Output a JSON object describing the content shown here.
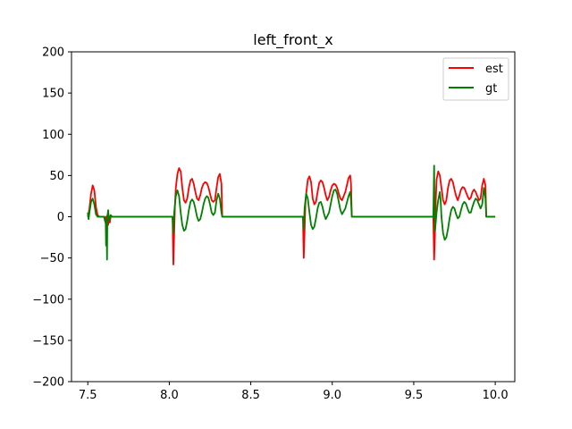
{
  "chart_data": {
    "type": "line",
    "title": "left_front_x",
    "xlabel": "",
    "ylabel": "",
    "xlim": [
      7.4,
      10.12
    ],
    "ylim": [
      -200,
      200
    ],
    "x_ticks": [
      7.5,
      8.0,
      8.5,
      9.0,
      9.5,
      10.0
    ],
    "x_tick_labels": [
      "7.5",
      "8.0",
      "8.5",
      "9.0",
      "9.5",
      "10.0"
    ],
    "y_ticks": [
      -200,
      -150,
      -100,
      -50,
      0,
      50,
      100,
      150,
      200
    ],
    "y_tick_labels": [
      "−200",
      "−150",
      "−100",
      "−50",
      "0",
      "50",
      "100",
      "150",
      "200"
    ],
    "grid": false,
    "legend_position": "top-right",
    "series": [
      {
        "name": "est",
        "color": "#ff0000",
        "points": [
          [
            7.5,
            0
          ],
          [
            7.51,
            10
          ],
          [
            7.52,
            28
          ],
          [
            7.53,
            38
          ],
          [
            7.54,
            32
          ],
          [
            7.55,
            12
          ],
          [
            7.56,
            2
          ],
          [
            7.57,
            0
          ],
          [
            7.6,
            0
          ],
          [
            7.605,
            -5
          ],
          [
            7.61,
            0
          ],
          [
            7.615,
            -8
          ],
          [
            7.62,
            2
          ],
          [
            7.625,
            -10
          ],
          [
            7.63,
            0
          ],
          [
            7.635,
            -7
          ],
          [
            7.64,
            0
          ],
          [
            7.65,
            0
          ],
          [
            8.0,
            0
          ],
          [
            8.02,
            0
          ],
          [
            8.025,
            -58
          ],
          [
            8.03,
            -20
          ],
          [
            8.035,
            15
          ],
          [
            8.04,
            35
          ],
          [
            8.05,
            52
          ],
          [
            8.06,
            59
          ],
          [
            8.07,
            55
          ],
          [
            8.08,
            35
          ],
          [
            8.09,
            20
          ],
          [
            8.1,
            17
          ],
          [
            8.11,
            22
          ],
          [
            8.12,
            35
          ],
          [
            8.13,
            44
          ],
          [
            8.14,
            46
          ],
          [
            8.15,
            40
          ],
          [
            8.16,
            30
          ],
          [
            8.17,
            22
          ],
          [
            8.18,
            20
          ],
          [
            8.19,
            26
          ],
          [
            8.2,
            35
          ],
          [
            8.21,
            40
          ],
          [
            8.22,
            42
          ],
          [
            8.23,
            41
          ],
          [
            8.24,
            36
          ],
          [
            8.25,
            28
          ],
          [
            8.26,
            20
          ],
          [
            8.27,
            18
          ],
          [
            8.28,
            20
          ],
          [
            8.29,
            35
          ],
          [
            8.3,
            48
          ],
          [
            8.31,
            52
          ],
          [
            8.32,
            40
          ],
          [
            8.325,
            0
          ],
          [
            8.35,
            0
          ],
          [
            8.8,
            0
          ],
          [
            8.82,
            0
          ],
          [
            8.825,
            -50
          ],
          [
            8.83,
            -18
          ],
          [
            8.835,
            15
          ],
          [
            8.84,
            28
          ],
          [
            8.85,
            45
          ],
          [
            8.86,
            49
          ],
          [
            8.87,
            42
          ],
          [
            8.88,
            22
          ],
          [
            8.89,
            15
          ],
          [
            8.9,
            18
          ],
          [
            8.91,
            30
          ],
          [
            8.92,
            41
          ],
          [
            8.93,
            44
          ],
          [
            8.94,
            42
          ],
          [
            8.95,
            35
          ],
          [
            8.96,
            26
          ],
          [
            8.97,
            20
          ],
          [
            8.98,
            24
          ],
          [
            8.99,
            32
          ],
          [
            9.0,
            38
          ],
          [
            9.01,
            40
          ],
          [
            9.02,
            39
          ],
          [
            9.03,
            35
          ],
          [
            9.04,
            28
          ],
          [
            9.05,
            22
          ],
          [
            9.06,
            20
          ],
          [
            9.08,
            30
          ],
          [
            9.1,
            47
          ],
          [
            9.11,
            50
          ],
          [
            9.115,
            40
          ],
          [
            9.12,
            0
          ],
          [
            9.15,
            0
          ],
          [
            9.6,
            0
          ],
          [
            9.62,
            0
          ],
          [
            9.625,
            -52
          ],
          [
            9.63,
            -20
          ],
          [
            9.635,
            20
          ],
          [
            9.64,
            45
          ],
          [
            9.65,
            55
          ],
          [
            9.66,
            50
          ],
          [
            9.67,
            35
          ],
          [
            9.68,
            20
          ],
          [
            9.69,
            15
          ],
          [
            9.7,
            20
          ],
          [
            9.71,
            35
          ],
          [
            9.72,
            44
          ],
          [
            9.73,
            46
          ],
          [
            9.74,
            42
          ],
          [
            9.75,
            33
          ],
          [
            9.76,
            25
          ],
          [
            9.77,
            20
          ],
          [
            9.78,
            26
          ],
          [
            9.79,
            33
          ],
          [
            9.8,
            36
          ],
          [
            9.81,
            35
          ],
          [
            9.82,
            30
          ],
          [
            9.83,
            25
          ],
          [
            9.84,
            21
          ],
          [
            9.85,
            23
          ],
          [
            9.86,
            30
          ],
          [
            9.87,
            33
          ],
          [
            9.88,
            30
          ],
          [
            9.89,
            25
          ],
          [
            9.9,
            20
          ],
          [
            9.91,
            22
          ],
          [
            9.92,
            38
          ],
          [
            9.93,
            46
          ],
          [
            9.94,
            38
          ],
          [
            9.945,
            0
          ],
          [
            10.0,
            0
          ]
        ]
      },
      {
        "name": "gt",
        "color": "#008000",
        "points": [
          [
            7.5,
            5
          ],
          [
            7.505,
            -3
          ],
          [
            7.51,
            5
          ],
          [
            7.52,
            18
          ],
          [
            7.53,
            22
          ],
          [
            7.54,
            15
          ],
          [
            7.55,
            3
          ],
          [
            7.56,
            0
          ],
          [
            7.6,
            0
          ],
          [
            7.61,
            -8
          ],
          [
            7.612,
            -35
          ],
          [
            7.615,
            -5
          ],
          [
            7.618,
            -52
          ],
          [
            7.62,
            0
          ],
          [
            7.625,
            8
          ],
          [
            7.63,
            -5
          ],
          [
            7.64,
            2
          ],
          [
            7.65,
            0
          ],
          [
            8.0,
            0
          ],
          [
            8.02,
            0
          ],
          [
            8.025,
            -20
          ],
          [
            8.03,
            5
          ],
          [
            8.04,
            25
          ],
          [
            8.05,
            32
          ],
          [
            8.06,
            25
          ],
          [
            8.07,
            5
          ],
          [
            8.08,
            -10
          ],
          [
            8.09,
            -17
          ],
          [
            8.1,
            -15
          ],
          [
            8.11,
            -5
          ],
          [
            8.12,
            8
          ],
          [
            8.13,
            18
          ],
          [
            8.14,
            21
          ],
          [
            8.15,
            18
          ],
          [
            8.16,
            10
          ],
          [
            8.17,
            0
          ],
          [
            8.18,
            -5
          ],
          [
            8.19,
            -3
          ],
          [
            8.2,
            5
          ],
          [
            8.21,
            15
          ],
          [
            8.22,
            22
          ],
          [
            8.23,
            25
          ],
          [
            8.24,
            23
          ],
          [
            8.25,
            15
          ],
          [
            8.26,
            5
          ],
          [
            8.27,
            2
          ],
          [
            8.28,
            5
          ],
          [
            8.29,
            20
          ],
          [
            8.3,
            28
          ],
          [
            8.31,
            22
          ],
          [
            8.32,
            5
          ],
          [
            8.325,
            0
          ],
          [
            8.35,
            0
          ],
          [
            8.8,
            0
          ],
          [
            8.82,
            0
          ],
          [
            8.825,
            -15
          ],
          [
            8.83,
            10
          ],
          [
            8.84,
            28
          ],
          [
            8.85,
            22
          ],
          [
            8.86,
            5
          ],
          [
            8.87,
            -10
          ],
          [
            8.88,
            -15
          ],
          [
            8.89,
            -12
          ],
          [
            8.9,
            -2
          ],
          [
            8.91,
            10
          ],
          [
            8.92,
            17
          ],
          [
            8.93,
            18
          ],
          [
            8.94,
            12
          ],
          [
            8.95,
            3
          ],
          [
            8.96,
            -3
          ],
          [
            8.98,
            5
          ],
          [
            8.99,
            15
          ],
          [
            9.0,
            25
          ],
          [
            9.01,
            32
          ],
          [
            9.02,
            33
          ],
          [
            9.03,
            28
          ],
          [
            9.04,
            18
          ],
          [
            9.05,
            8
          ],
          [
            9.06,
            3
          ],
          [
            9.08,
            10
          ],
          [
            9.1,
            25
          ],
          [
            9.11,
            30
          ],
          [
            9.115,
            20
          ],
          [
            9.12,
            0
          ],
          [
            9.15,
            0
          ],
          [
            9.6,
            0
          ],
          [
            9.62,
            0
          ],
          [
            9.625,
            62
          ],
          [
            9.628,
            0
          ],
          [
            9.63,
            -18
          ],
          [
            9.64,
            5
          ],
          [
            9.65,
            20
          ],
          [
            9.66,
            30
          ],
          [
            9.665,
            20
          ],
          [
            9.67,
            0
          ],
          [
            9.68,
            -20
          ],
          [
            9.69,
            -28
          ],
          [
            9.7,
            -25
          ],
          [
            9.71,
            -15
          ],
          [
            9.72,
            -2
          ],
          [
            9.73,
            8
          ],
          [
            9.74,
            12
          ],
          [
            9.75,
            10
          ],
          [
            9.76,
            3
          ],
          [
            9.77,
            -2
          ],
          [
            9.78,
            0
          ],
          [
            9.79,
            8
          ],
          [
            9.8,
            15
          ],
          [
            9.81,
            18
          ],
          [
            9.82,
            16
          ],
          [
            9.83,
            10
          ],
          [
            9.84,
            5
          ],
          [
            9.85,
            5
          ],
          [
            9.86,
            12
          ],
          [
            9.87,
            18
          ],
          [
            9.88,
            22
          ],
          [
            9.89,
            20
          ],
          [
            9.9,
            15
          ],
          [
            9.91,
            10
          ],
          [
            9.92,
            15
          ],
          [
            9.93,
            35
          ],
          [
            9.94,
            22
          ],
          [
            9.945,
            0
          ],
          [
            10.0,
            0
          ]
        ]
      }
    ]
  }
}
